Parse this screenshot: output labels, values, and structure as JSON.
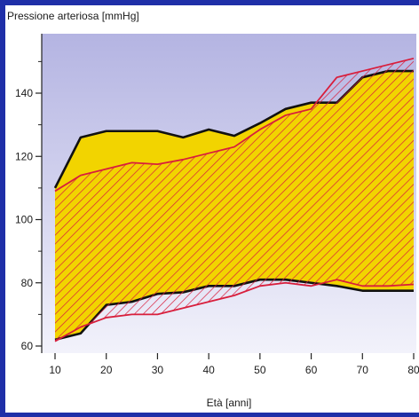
{
  "chart_data": {
    "type": "area",
    "ylabel": "Pressione arteriosa [mmHg]",
    "xlabel": "Età [anni]",
    "xlim": [
      10,
      80
    ],
    "ylim": [
      57,
      166
    ],
    "x_ticks": [
      10,
      20,
      30,
      40,
      50,
      60,
      70,
      80
    ],
    "x_tick_labels": [
      "10",
      "20",
      "30",
      "40",
      "50",
      "60",
      "70",
      "80"
    ],
    "y_ticks": [
      60,
      80,
      100,
      120,
      140
    ],
    "y_tick_labels": [
      "60",
      "80",
      "100",
      "120",
      "140"
    ],
    "grid": false,
    "series": [
      {
        "fill": "solid",
        "color": "#f2d400",
        "edge_color": "#111111",
        "upper": [
          [
            10,
            110
          ],
          [
            15,
            126
          ],
          [
            20,
            128
          ],
          [
            25,
            128
          ],
          [
            30,
            128
          ],
          [
            35,
            126
          ],
          [
            40,
            128.5
          ],
          [
            45,
            126.5
          ],
          [
            50,
            130.5
          ],
          [
            55,
            135
          ],
          [
            60,
            137
          ],
          [
            65,
            137
          ],
          [
            70,
            145
          ],
          [
            75,
            147
          ],
          [
            80,
            147
          ]
        ],
        "lower": [
          [
            10,
            62
          ],
          [
            15,
            64
          ],
          [
            20,
            73
          ],
          [
            25,
            74
          ],
          [
            30,
            76.5
          ],
          [
            35,
            77
          ],
          [
            40,
            79
          ],
          [
            45,
            79
          ],
          [
            50,
            81
          ],
          [
            55,
            81
          ],
          [
            60,
            80
          ],
          [
            65,
            79
          ],
          [
            70,
            77.5
          ],
          [
            75,
            77.5
          ],
          [
            80,
            77.5
          ]
        ]
      },
      {
        "fill": "hatched",
        "color": "#d81e3c",
        "edge_color": "#d81e3c",
        "upper": [
          [
            10,
            109
          ],
          [
            15,
            114
          ],
          [
            20,
            116
          ],
          [
            25,
            118
          ],
          [
            30,
            117.5
          ],
          [
            35,
            119
          ],
          [
            40,
            121
          ],
          [
            45,
            123
          ],
          [
            50,
            128.5
          ],
          [
            55,
            133
          ],
          [
            60,
            135
          ],
          [
            65,
            145
          ],
          [
            70,
            147
          ],
          [
            75,
            149
          ],
          [
            80,
            151
          ]
        ],
        "lower": [
          [
            10,
            61.5
          ],
          [
            15,
            66
          ],
          [
            20,
            69
          ],
          [
            25,
            70
          ],
          [
            30,
            70
          ],
          [
            35,
            72
          ],
          [
            40,
            74
          ],
          [
            45,
            76
          ],
          [
            50,
            79
          ],
          [
            55,
            80
          ],
          [
            60,
            79
          ],
          [
            65,
            81
          ],
          [
            70,
            79
          ],
          [
            75,
            79
          ],
          [
            80,
            79.5
          ]
        ]
      }
    ]
  },
  "colors": {
    "slide_background": "#1f2fa8",
    "panel_background": "#ffffff",
    "plot_gradient_top": "#b4b4e2",
    "plot_gradient_bottom": "#f2f2fb",
    "axis_text": "#1a1a1a"
  }
}
